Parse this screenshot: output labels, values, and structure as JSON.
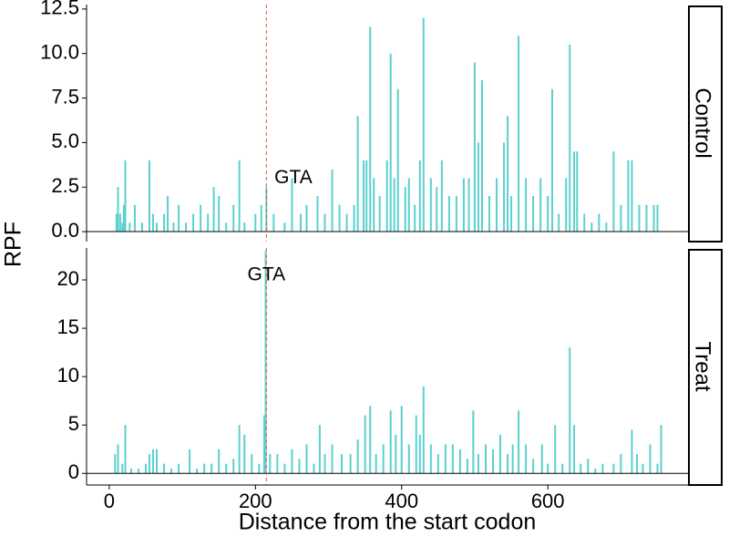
{
  "chart_data": {
    "type": "bar",
    "x_label": "Distance from the start codon",
    "y_label": "RPF",
    "color": "#5bd0d0",
    "xlim": [
      -31,
      793
    ],
    "xticks": [
      0,
      200,
      400,
      600
    ],
    "vline": {
      "x": 215,
      "color": "#e05a3a"
    },
    "panels": [
      {
        "strip": "Control",
        "ylim": [
          -0.56,
          12.75
        ],
        "yticks": [
          {
            "value": 0,
            "label": "0.0"
          },
          2.5,
          {
            "value": 5,
            "label": "5.0"
          },
          7.5,
          {
            "value": 10,
            "label": "10.0"
          },
          12.5
        ],
        "annotation": {
          "text": "GTA",
          "x": 226,
          "y": 3
        },
        "x": [
          10,
          12,
          15,
          18,
          20,
          22,
          28,
          35,
          45,
          55,
          60,
          65,
          75,
          80,
          88,
          95,
          105,
          115,
          125,
          135,
          143,
          150,
          160,
          170,
          178,
          185,
          200,
          208,
          215,
          225,
          240,
          250,
          262,
          270,
          285,
          295,
          305,
          315,
          325,
          335,
          340,
          348,
          352,
          357,
          362,
          370,
          380,
          385,
          390,
          395,
          405,
          410,
          418,
          425,
          430,
          440,
          448,
          455,
          465,
          475,
          485,
          492,
          500,
          505,
          510,
          520,
          530,
          540,
          545,
          550,
          560,
          570,
          580,
          590,
          600,
          606,
          615,
          625,
          630,
          636,
          640,
          650,
          660,
          670,
          680,
          690,
          700,
          710,
          715,
          725,
          735,
          745,
          750
        ],
        "values": [
          1,
          2.5,
          1,
          0.5,
          1.5,
          4,
          0.5,
          1.5,
          0.5,
          4,
          1,
          0.5,
          1,
          2,
          0.5,
          1.5,
          0.5,
          1,
          1.5,
          1,
          2.5,
          2,
          0.5,
          1.5,
          4,
          0.5,
          1,
          1.5,
          2.5,
          1,
          0.5,
          3,
          1,
          1.5,
          2,
          1,
          3.5,
          1.5,
          1,
          1.5,
          6.5,
          4,
          4,
          11.5,
          3,
          2,
          4,
          10,
          3,
          8,
          2.5,
          3,
          1.5,
          4,
          12,
          3,
          2.5,
          4,
          2,
          2,
          3,
          3,
          9.5,
          5,
          8.5,
          2,
          3,
          5,
          6.5,
          2,
          11,
          3,
          2,
          3,
          2,
          8,
          1,
          3,
          10.5,
          4.5,
          4.5,
          1,
          0.5,
          1,
          0.5,
          4.5,
          1.5,
          4,
          4,
          1.5,
          1.5,
          1.5,
          1.5
        ]
      },
      {
        "strip": "Treat",
        "ylim": [
          -1.2,
          23.3
        ],
        "yticks": [
          0,
          5,
          10,
          15,
          20
        ],
        "annotation": {
          "text": "GTA",
          "x": 215,
          "y": 20.5
        },
        "x": [
          8,
          12,
          18,
          22,
          30,
          40,
          50,
          55,
          60,
          65,
          75,
          85,
          95,
          110,
          120,
          130,
          140,
          150,
          160,
          170,
          178,
          185,
          195,
          205,
          212,
          214,
          220,
          230,
          240,
          250,
          260,
          270,
          280,
          288,
          295,
          305,
          318,
          330,
          340,
          350,
          357,
          365,
          375,
          385,
          392,
          400,
          410,
          420,
          425,
          430,
          440,
          450,
          460,
          470,
          480,
          490,
          498,
          505,
          515,
          525,
          535,
          545,
          552,
          560,
          570,
          580,
          592,
          600,
          610,
          620,
          630,
          636,
          645,
          655,
          665,
          675,
          690,
          700,
          715,
          722,
          730,
          740,
          750,
          755
        ],
        "values": [
          2,
          3,
          1,
          5,
          0.5,
          0.5,
          1,
          2,
          2.5,
          2.5,
          1,
          0.5,
          1,
          2.5,
          0.5,
          1,
          1,
          2.5,
          1,
          1.5,
          5,
          4,
          2,
          1,
          6,
          23,
          2,
          2,
          1,
          2.5,
          1.5,
          3,
          1,
          5,
          2,
          3,
          2,
          2,
          3.5,
          6,
          7,
          2,
          3,
          6.5,
          4,
          7,
          3,
          6,
          4,
          9,
          3,
          2,
          3,
          3,
          2.5,
          1.5,
          6.5,
          2,
          3,
          2.5,
          4,
          2,
          3,
          6.5,
          3,
          1.5,
          3,
          1,
          5,
          1,
          13,
          5,
          1,
          1.5,
          0.5,
          1,
          1,
          2,
          4.5,
          2,
          1,
          3,
          1,
          5
        ]
      }
    ]
  }
}
